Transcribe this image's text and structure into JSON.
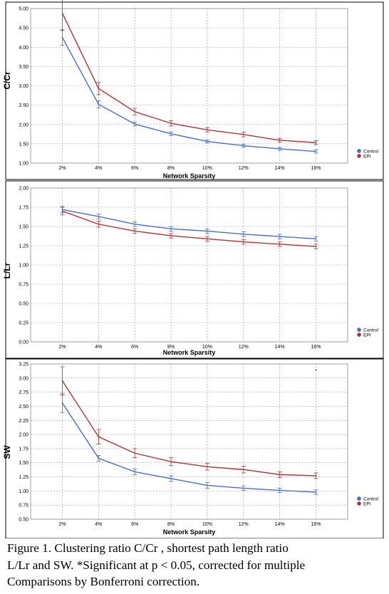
{
  "chart_data": [
    {
      "type": "line",
      "ylabel": "C/Cr",
      "xlabel": "Network Sparsity",
      "categories": [
        "2%",
        "4%",
        "6%",
        "8%",
        "10%",
        "12%",
        "14%",
        "16%"
      ],
      "ylim": [
        1.0,
        5.0
      ],
      "yticks": [
        "1.00",
        "1.50",
        "2.00",
        "2.50",
        "3.00",
        "3.50",
        "4.00",
        "4.50",
        "5.00"
      ],
      "grid": true,
      "legend_position": "right",
      "series": [
        {
          "name": "Control",
          "color": "#4a6fc4",
          "values": [
            4.25,
            2.52,
            2.01,
            1.76,
            1.56,
            1.45,
            1.37,
            1.3
          ],
          "errors": [
            0.2,
            0.09,
            0.05,
            0.05,
            0.04,
            0.04,
            0.04,
            0.04
          ]
        },
        {
          "name": "EPI",
          "color": "#b03438",
          "values": [
            4.88,
            2.93,
            2.33,
            2.03,
            1.86,
            1.74,
            1.59,
            1.53
          ],
          "errors": [
            0.45,
            0.16,
            0.09,
            0.07,
            0.06,
            0.06,
            0.05,
            0.05
          ]
        }
      ],
      "annotations": []
    },
    {
      "type": "line",
      "ylabel": "L/Lr",
      "xlabel": "Network Sparsity",
      "categories": [
        "2%",
        "4%",
        "6%",
        "8%",
        "10%",
        "12%",
        "14%",
        "16%"
      ],
      "ylim": [
        0.0,
        2.0
      ],
      "yticks": [
        "0.00",
        "0.25",
        "0.50",
        "0.75",
        "1.00",
        "1.25",
        "1.50",
        "1.75",
        "2.00"
      ],
      "grid": true,
      "legend_position": "right",
      "series": [
        {
          "name": "Control",
          "color": "#4a6fc4",
          "values": [
            1.72,
            1.63,
            1.53,
            1.47,
            1.44,
            1.4,
            1.37,
            1.34
          ],
          "errors": [
            0.04,
            0.03,
            0.03,
            0.03,
            0.03,
            0.03,
            0.03,
            0.03
          ]
        },
        {
          "name": "EPI",
          "color": "#b03438",
          "values": [
            1.7,
            1.53,
            1.44,
            1.38,
            1.34,
            1.3,
            1.27,
            1.24
          ],
          "errors": [
            0.05,
            0.04,
            0.03,
            0.03,
            0.03,
            0.03,
            0.03,
            0.03
          ]
        }
      ],
      "annotations": []
    },
    {
      "type": "line",
      "ylabel": "SW",
      "xlabel": "Network Sparsity",
      "categories": [
        "2%",
        "4%",
        "6%",
        "8%",
        "10%",
        "12%",
        "14%",
        "16%"
      ],
      "ylim": [
        0.5,
        3.25
      ],
      "yticks": [
        "0.50",
        "0.75",
        "1.00",
        "1.25",
        "1.50",
        "1.75",
        "2.00",
        "2.25",
        "2.50",
        "2.75",
        "3.00",
        "3.25"
      ],
      "grid": true,
      "legend_position": "right",
      "series": [
        {
          "name": "Control",
          "color": "#4a6fc4",
          "values": [
            2.56,
            1.58,
            1.34,
            1.22,
            1.1,
            1.05,
            1.01,
            0.98
          ],
          "errors": [
            0.17,
            0.05,
            0.05,
            0.05,
            0.05,
            0.04,
            0.04,
            0.04
          ]
        },
        {
          "name": "EPI",
          "color": "#b03438",
          "values": [
            2.95,
            1.96,
            1.67,
            1.52,
            1.43,
            1.38,
            1.29,
            1.27
          ],
          "errors": [
            0.25,
            0.13,
            0.08,
            0.07,
            0.06,
            0.06,
            0.05,
            0.05
          ]
        }
      ],
      "annotations": [
        {
          "text": "*",
          "at": "16%"
        }
      ]
    }
  ],
  "caption": {
    "lines": [
      "Figure 1. Clustering ratio C/Cr , shortest path length ratio",
      "L/Lr and SW. *Significant at p < 0.05, corrected for multiple",
      "Comparisons by Bonferroni correction."
    ]
  }
}
